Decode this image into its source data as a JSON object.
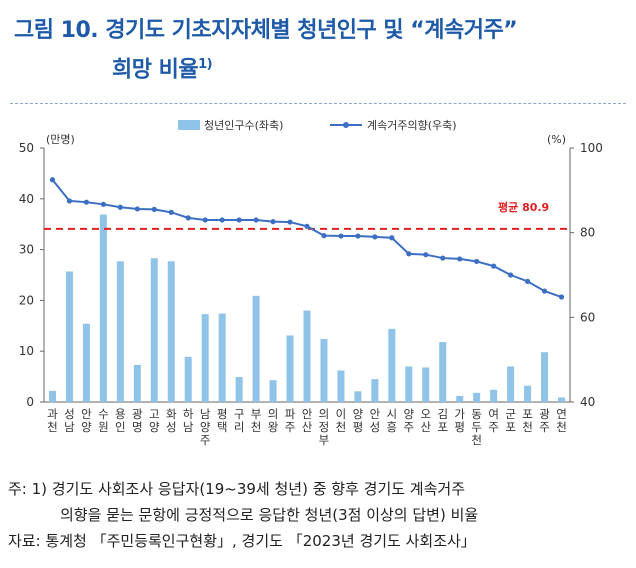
{
  "title": {
    "line1": "그림 10. 경기도 기초지자체별 청년인구 및 “계속거주”",
    "line2": "희망 비율",
    "footnote_mark": "1)"
  },
  "chart_data": {
    "type": "bar",
    "categories": [
      "과천",
      "성남",
      "안양",
      "수원",
      "용인",
      "광명",
      "고양",
      "화성",
      "하남",
      "남양주",
      "평택",
      "구리",
      "부천",
      "의왕",
      "파주",
      "안산",
      "의정부",
      "이천",
      "양평",
      "안성",
      "시흥",
      "양주",
      "오산",
      "김포",
      "가평",
      "동두천",
      "여주",
      "군포",
      "포천",
      "광주",
      "연천"
    ],
    "series": [
      {
        "name": "청년인구수(좌축)",
        "type": "bar",
        "axis": "left",
        "color": "#8fc3e8",
        "values": [
          2.2,
          25.7,
          15.4,
          36.9,
          27.7,
          7.3,
          28.3,
          27.7,
          8.9,
          17.3,
          17.4,
          4.9,
          20.9,
          4.3,
          13.1,
          18.0,
          12.4,
          6.2,
          2.1,
          4.5,
          14.4,
          7.0,
          6.8,
          11.8,
          1.2,
          1.8,
          2.4,
          7.0,
          3.2,
          9.8,
          0.9
        ]
      },
      {
        "name": "계속거주의향(우축)",
        "type": "line",
        "axis": "right",
        "color": "#3c6fc4",
        "values": [
          92.5,
          87.5,
          87.2,
          86.7,
          86.0,
          85.6,
          85.5,
          84.8,
          83.5,
          83.0,
          83.0,
          83.0,
          83.0,
          82.6,
          82.5,
          81.5,
          79.3,
          79.2,
          79.2,
          79.0,
          78.8,
          75.0,
          74.8,
          74.0,
          73.8,
          73.2,
          72.1,
          70.0,
          68.5,
          66.2,
          64.8
        ]
      }
    ],
    "left_axis": {
      "unit": "(만명)",
      "ylim": [
        0,
        50
      ],
      "ticks": [
        0,
        10,
        20,
        30,
        40,
        50
      ]
    },
    "right_axis": {
      "unit": "(%)",
      "ylim": [
        40,
        100
      ],
      "ticks": [
        40,
        60,
        80,
        100
      ]
    },
    "average": {
      "label": "평균 80.9",
      "value": 80.9,
      "color": "#e02020"
    },
    "legend_position": "top-center",
    "grid": false
  },
  "notes": {
    "line1": "주: 1) 경기도 사회조사 응답자(19~39세 청년) 중 향후 경기도 계속거주",
    "line2": "의향을 묻는 문항에 긍정적으로 응답한 청년(3점 이상의 답변) 비율",
    "line3": "자료: 통계청 「주민등록인구현황」, 경기도 「2023년 경기도 사회조사」"
  }
}
